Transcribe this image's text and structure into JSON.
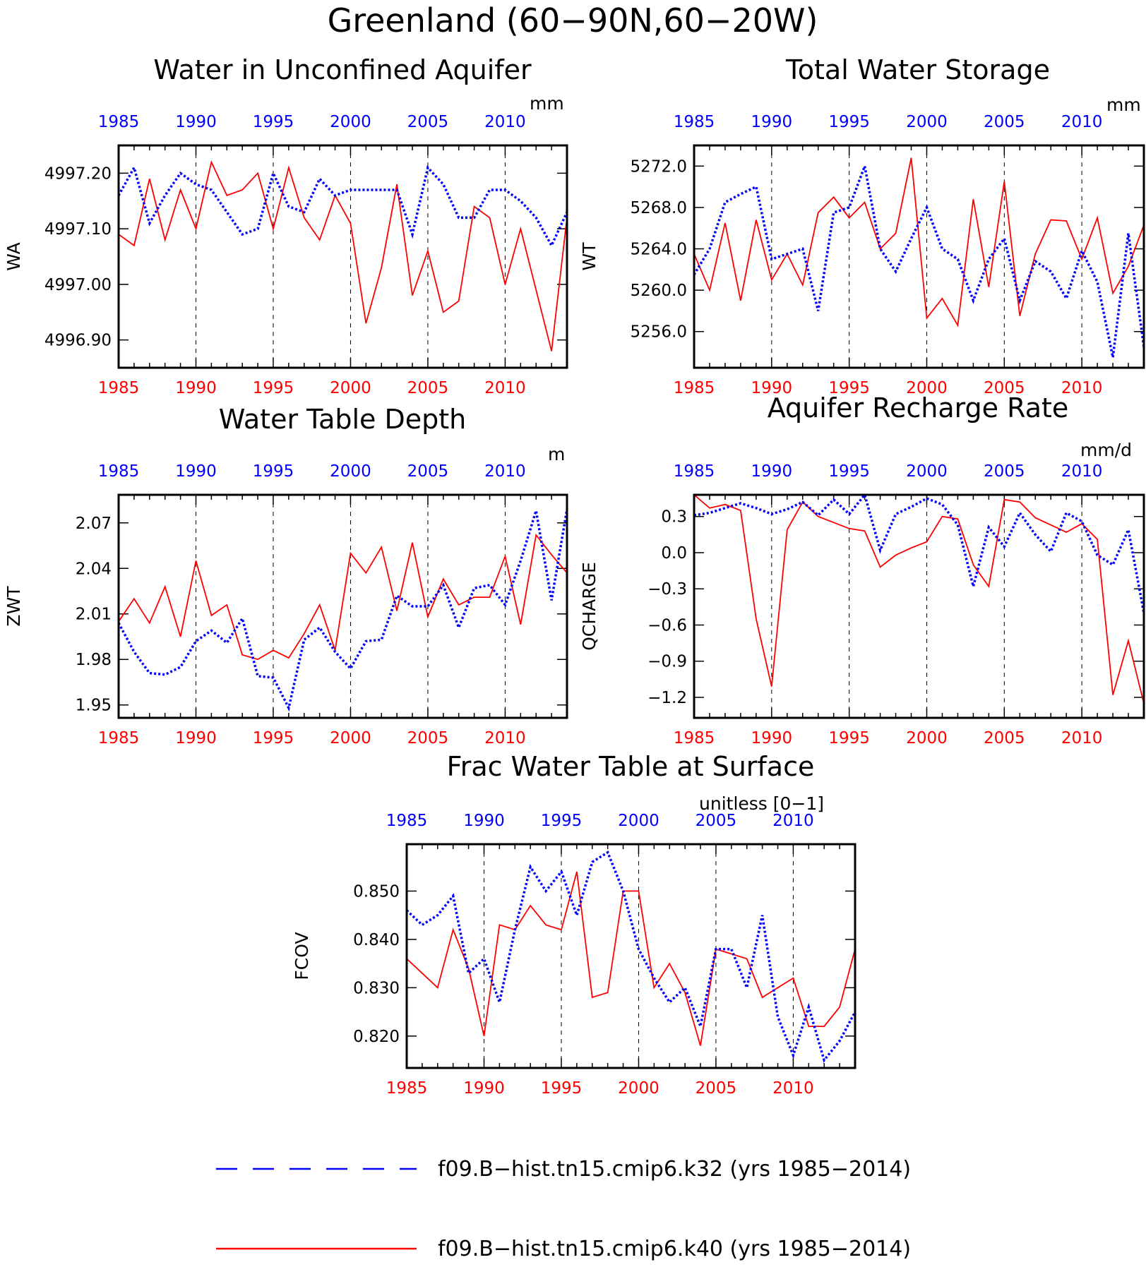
{
  "page_title": "Greenland (60−90N,60−20W)",
  "colors": {
    "k32": "#0000ff",
    "k40": "#ff0000",
    "axis": "#000000"
  },
  "legend": [
    {
      "label": "f09.B−hist.tn15.cmip6.k32 (yrs 1985−2014)",
      "color": "#0000ff",
      "style": "dashed"
    },
    {
      "label": "f09.B−hist.tn15.cmip6.k40 (yrs 1985−2014)",
      "color": "#ff0000",
      "style": "solid"
    }
  ],
  "chart_data": [
    {
      "type": "line",
      "title": "Water in Unconfined Aquifer",
      "ylabel": "WA",
      "units": "mm",
      "xlim": [
        1985,
        2014
      ],
      "ylim": [
        4996.85,
        4997.25
      ],
      "yticks": [
        4996.9,
        4997.0,
        4997.1,
        4997.2
      ],
      "ytick_labels": [
        "4996.90",
        "4997.00",
        "4997.10",
        "4997.20"
      ],
      "xticks": [
        1985,
        1990,
        1995,
        2000,
        2005,
        2010
      ],
      "xtick_labels": [
        "1985",
        "1990",
        "1995",
        "2000",
        "2005",
        "2010"
      ],
      "x": [
        1985,
        1986,
        1987,
        1988,
        1989,
        1990,
        1991,
        1992,
        1993,
        1994,
        1995,
        1996,
        1997,
        1998,
        1999,
        2000,
        2001,
        2002,
        2003,
        2004,
        2005,
        2006,
        2007,
        2008,
        2009,
        2010,
        2011,
        2012,
        2013,
        2014
      ],
      "series": [
        {
          "name": "f09.B−hist.tn15.cmip6.k32",
          "color": "#0000ff",
          "style": "dashed",
          "values": [
            4997.16,
            4997.21,
            4997.11,
            4997.16,
            4997.2,
            4997.18,
            4997.17,
            4997.13,
            4997.09,
            4997.1,
            4997.2,
            4997.14,
            4997.13,
            4997.19,
            4997.16,
            4997.17,
            4997.17,
            4997.17,
            4997.17,
            4997.09,
            4997.21,
            4997.18,
            4997.12,
            4997.12,
            4997.17,
            4997.17,
            4997.15,
            4997.12,
            4997.07,
            4997.13
          ]
        },
        {
          "name": "f09.B−hist.tn15.cmip6.k40",
          "color": "#ff0000",
          "style": "solid",
          "values": [
            4997.09,
            4997.07,
            4997.19,
            4997.08,
            4997.17,
            4997.1,
            4997.22,
            4997.16,
            4997.17,
            4997.2,
            4997.1,
            4997.21,
            4997.12,
            4997.08,
            4997.16,
            4997.11,
            4996.93,
            4997.03,
            4997.18,
            4996.98,
            4997.06,
            4996.95,
            4996.97,
            4997.14,
            4997.12,
            4997.0,
            4997.1,
            4996.99,
            4996.88,
            4997.12
          ]
        }
      ]
    },
    {
      "type": "line",
      "title": "Total Water Storage",
      "ylabel": "WT",
      "units": "mm",
      "xlim": [
        1985,
        2014
      ],
      "ylim": [
        5252.5,
        5274.0
      ],
      "yticks": [
        5256,
        5260,
        5264,
        5268,
        5272
      ],
      "ytick_labels": [
        "5256.0",
        "5260.0",
        "5264.0",
        "5268.0",
        "5272.0"
      ],
      "xticks": [
        1985,
        1990,
        1995,
        2000,
        2005,
        2010
      ],
      "xtick_labels": [
        "1985",
        "1990",
        "1995",
        "2000",
        "2005",
        "2010"
      ],
      "x": [
        1985,
        1986,
        1987,
        1988,
        1989,
        1990,
        1991,
        1992,
        1993,
        1994,
        1995,
        1996,
        1997,
        1998,
        1999,
        2000,
        2001,
        2002,
        2003,
        2004,
        2005,
        2006,
        2007,
        2008,
        2009,
        2010,
        2011,
        2012,
        2013,
        2014
      ],
      "series": [
        {
          "name": "f09.B−hist.tn15.cmip6.k32",
          "color": "#0000ff",
          "style": "dashed",
          "values": [
            5261.5,
            5264.0,
            5268.5,
            5269.3,
            5270.0,
            5263.0,
            5263.5,
            5264.0,
            5258.0,
            5267.5,
            5268.0,
            5272.0,
            5264.0,
            5261.8,
            5265.0,
            5268.0,
            5264.0,
            5263.0,
            5259.0,
            5263.0,
            5265.0,
            5259.0,
            5262.8,
            5261.8,
            5259.2,
            5263.8,
            5260.8,
            5253.5,
            5265.5,
            5254.5
          ]
        },
        {
          "name": "f09.B−hist.tn15.cmip6.k40",
          "color": "#ff0000",
          "style": "solid",
          "values": [
            5263.5,
            5260.0,
            5266.5,
            5259.0,
            5266.8,
            5261.0,
            5263.5,
            5260.5,
            5267.5,
            5269.0,
            5267.0,
            5268.5,
            5264.0,
            5265.5,
            5272.8,
            5257.3,
            5259.2,
            5256.6,
            5268.8,
            5260.3,
            5270.5,
            5257.5,
            5263.5,
            5266.8,
            5266.7,
            5263.0,
            5267.0,
            5259.7,
            5262.3,
            5266.3
          ]
        }
      ]
    },
    {
      "type": "line",
      "title": "Water Table Depth",
      "ylabel": "ZWT",
      "units": "m",
      "xlim": [
        1985,
        2014
      ],
      "ylim": [
        1.9415,
        2.0885
      ],
      "yticks": [
        1.95,
        1.98,
        2.01,
        2.04,
        2.07
      ],
      "ytick_labels": [
        "1.95",
        "1.98",
        "2.01",
        "2.04",
        "2.07"
      ],
      "xticks": [
        1985,
        1990,
        1995,
        2000,
        2005,
        2010
      ],
      "xtick_labels": [
        "1985",
        "1990",
        "1995",
        "2000",
        "2005",
        "2010"
      ],
      "x": [
        1985,
        1986,
        1987,
        1988,
        1989,
        1990,
        1991,
        1992,
        1993,
        1994,
        1995,
        1996,
        1997,
        1998,
        1999,
        2000,
        2001,
        2002,
        2003,
        2004,
        2005,
        2006,
        2007,
        2008,
        2009,
        2010,
        2011,
        2012,
        2013,
        2014
      ],
      "series": [
        {
          "name": "f09.B−hist.tn15.cmip6.k32",
          "color": "#0000ff",
          "style": "dashed",
          "values": [
            2.004,
            1.985,
            1.971,
            1.97,
            1.975,
            1.992,
            1.999,
            1.991,
            2.007,
            1.969,
            1.968,
            1.948,
            1.993,
            2.001,
            1.985,
            1.974,
            1.992,
            1.993,
            2.022,
            2.015,
            2.015,
            2.029,
            2.001,
            2.027,
            2.029,
            2.016,
            2.045,
            2.078,
            2.019,
            2.079
          ]
        },
        {
          "name": "f09.B−hist.tn15.cmip6.k40",
          "color": "#ff0000",
          "style": "solid",
          "values": [
            2.005,
            2.02,
            2.004,
            2.028,
            1.995,
            2.045,
            2.009,
            2.016,
            1.983,
            1.98,
            1.986,
            1.981,
            1.997,
            2.016,
            1.986,
            2.05,
            2.037,
            2.054,
            2.012,
            2.057,
            2.008,
            2.033,
            2.016,
            2.021,
            2.021,
            2.048,
            2.003,
            2.062,
            2.049,
            2.037
          ]
        }
      ]
    },
    {
      "type": "line",
      "title": "Aquifer Recharge Rate",
      "ylabel": "QCHARGE",
      "units": "mm/d",
      "xlim": [
        1985,
        2014
      ],
      "ylim": [
        -1.37,
        0.48
      ],
      "yticks": [
        -1.2,
        -0.9,
        -0.6,
        -0.3,
        0.0,
        0.3
      ],
      "ytick_labels": [
        "−1.2",
        "−0.9",
        "−0.6",
        "−0.3",
        "0.0",
        "0.3"
      ],
      "xticks": [
        1985,
        1990,
        1995,
        2000,
        2005,
        2010
      ],
      "xtick_labels": [
        "1985",
        "1990",
        "1995",
        "2000",
        "2005",
        "2010"
      ],
      "x": [
        1985,
        1986,
        1987,
        1988,
        1989,
        1990,
        1991,
        1992,
        1993,
        1994,
        1995,
        1996,
        1997,
        1998,
        1999,
        2000,
        2001,
        2002,
        2003,
        2004,
        2005,
        2006,
        2007,
        2008,
        2009,
        2010,
        2011,
        2012,
        2013,
        2014
      ],
      "series": [
        {
          "name": "f09.B−hist.tn15.cmip6.k32",
          "color": "#0000ff",
          "style": "dashed",
          "values": [
            0.31,
            0.33,
            0.37,
            0.41,
            0.37,
            0.32,
            0.36,
            0.42,
            0.31,
            0.44,
            0.32,
            0.48,
            0.02,
            0.32,
            0.38,
            0.45,
            0.4,
            0.23,
            -0.28,
            0.21,
            0.05,
            0.33,
            0.15,
            0.01,
            0.33,
            0.26,
            -0.02,
            -0.1,
            0.19,
            -0.5
          ]
        },
        {
          "name": "f09.B−hist.tn15.cmip6.k40",
          "color": "#ff0000",
          "style": "solid",
          "values": [
            0.48,
            0.37,
            0.4,
            0.35,
            -0.55,
            -1.11,
            0.19,
            0.42,
            0.3,
            0.25,
            0.2,
            0.18,
            -0.12,
            -0.02,
            0.04,
            0.09,
            0.3,
            0.28,
            -0.1,
            -0.28,
            0.44,
            0.42,
            0.29,
            0.23,
            0.17,
            0.24,
            0.11,
            -1.18,
            -0.73,
            -1.25
          ]
        }
      ]
    },
    {
      "type": "line",
      "title": "Frac Water Table at Surface",
      "ylabel": "FCOV",
      "units": "unitless [0−1]",
      "xlim": [
        1985,
        2014
      ],
      "ylim": [
        0.8134,
        0.8597
      ],
      "yticks": [
        0.82,
        0.83,
        0.84,
        0.85
      ],
      "ytick_labels": [
        "0.820",
        "0.830",
        "0.840",
        "0.850"
      ],
      "xticks": [
        1985,
        1990,
        1995,
        2000,
        2005,
        2010
      ],
      "xtick_labels": [
        "1985",
        "1990",
        "1995",
        "2000",
        "2005",
        "2010"
      ],
      "x": [
        1985,
        1986,
        1987,
        1988,
        1989,
        1990,
        1991,
        1992,
        1993,
        1994,
        1995,
        1996,
        1997,
        1998,
        1999,
        2000,
        2001,
        2002,
        2003,
        2004,
        2005,
        2006,
        2007,
        2008,
        2009,
        2010,
        2011,
        2012,
        2013,
        2014
      ],
      "series": [
        {
          "name": "f09.B−hist.tn15.cmip6.k32",
          "color": "#0000ff",
          "style": "dashed",
          "values": [
            0.846,
            0.843,
            0.845,
            0.849,
            0.833,
            0.836,
            0.827,
            0.842,
            0.855,
            0.85,
            0.854,
            0.845,
            0.856,
            0.858,
            0.85,
            0.838,
            0.832,
            0.827,
            0.83,
            0.822,
            0.838,
            0.838,
            0.83,
            0.845,
            0.824,
            0.816,
            0.826,
            0.815,
            0.819,
            0.825
          ]
        },
        {
          "name": "f09.B−hist.tn15.cmip6.k40",
          "color": "#ff0000",
          "style": "solid",
          "values": [
            0.836,
            0.833,
            0.83,
            0.842,
            0.834,
            0.82,
            0.843,
            0.842,
            0.847,
            0.843,
            0.842,
            0.854,
            0.828,
            0.829,
            0.85,
            0.85,
            0.83,
            0.835,
            0.829,
            0.818,
            0.838,
            0.837,
            0.836,
            0.828,
            0.83,
            0.832,
            0.822,
            0.822,
            0.826,
            0.838
          ]
        }
      ]
    }
  ]
}
